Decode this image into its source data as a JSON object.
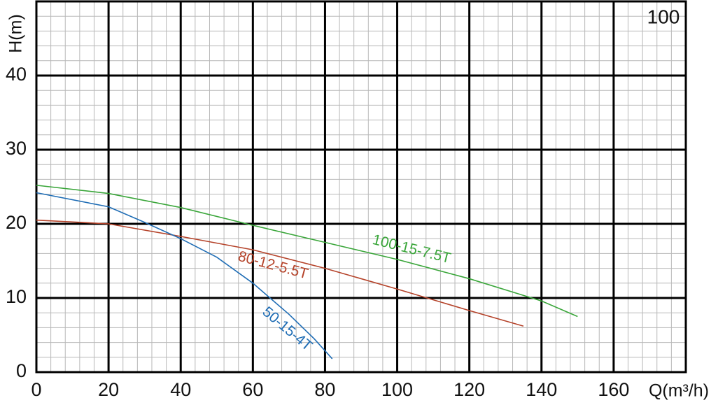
{
  "chart_data": {
    "type": "line",
    "corner_label": "100",
    "corner_label_color": "#1f6db5",
    "xlabel": "Q(m³/h)",
    "ylabel": "H(m)",
    "xlim": [
      0,
      180
    ],
    "ylim": [
      0,
      50
    ],
    "xticks": [
      0,
      20,
      40,
      60,
      80,
      100,
      120,
      140,
      160
    ],
    "yticks": [
      0,
      10,
      20,
      30,
      40
    ],
    "grid": true,
    "series": [
      {
        "name": "100-15-7.5T",
        "color": "#3aa63a",
        "x": [
          0,
          20,
          40,
          60,
          80,
          100,
          120,
          140,
          150
        ],
        "values": [
          25.2,
          24.1,
          22.2,
          19.8,
          17.5,
          15.2,
          12.6,
          9.6,
          7.5
        ]
      },
      {
        "name": "80-12-5.5T",
        "color": "#b5432a",
        "x": [
          0,
          20,
          40,
          60,
          80,
          100,
          120,
          135
        ],
        "values": [
          20.5,
          20.0,
          18.3,
          16.5,
          14.0,
          11.2,
          8.3,
          6.2
        ]
      },
      {
        "name": "50-15-4T",
        "color": "#1f6db5",
        "x": [
          0,
          20,
          30,
          40,
          50,
          60,
          70,
          77,
          82
        ],
        "values": [
          24.2,
          22.3,
          20.2,
          18.0,
          15.5,
          12.0,
          7.8,
          4.5,
          1.8
        ]
      }
    ]
  }
}
